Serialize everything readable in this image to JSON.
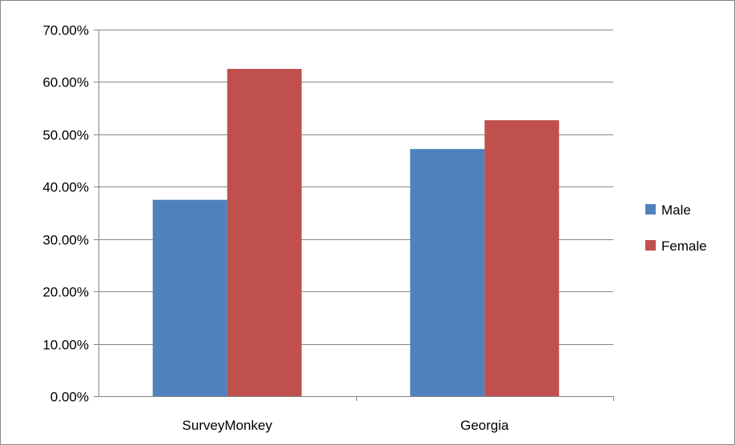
{
  "chart_data": {
    "type": "bar",
    "categories": [
      "SurveyMonkey",
      "Georgia"
    ],
    "series": [
      {
        "name": "Male",
        "values": [
          0.375,
          0.472
        ],
        "color": "#4f81bd"
      },
      {
        "name": "Female",
        "values": [
          0.625,
          0.527
        ],
        "color": "#c0504d"
      }
    ],
    "ylim": [
      0,
      0.7
    ],
    "yticks": [
      0,
      0.1,
      0.2,
      0.3,
      0.4,
      0.5,
      0.6,
      0.7
    ],
    "ytick_labels": [
      "0.00%",
      "10.00%",
      "20.00%",
      "30.00%",
      "40.00%",
      "50.00%",
      "60.00%",
      "70.00%"
    ],
    "grid": true,
    "legend_position": "right",
    "title": "",
    "xlabel": "",
    "ylabel": ""
  }
}
